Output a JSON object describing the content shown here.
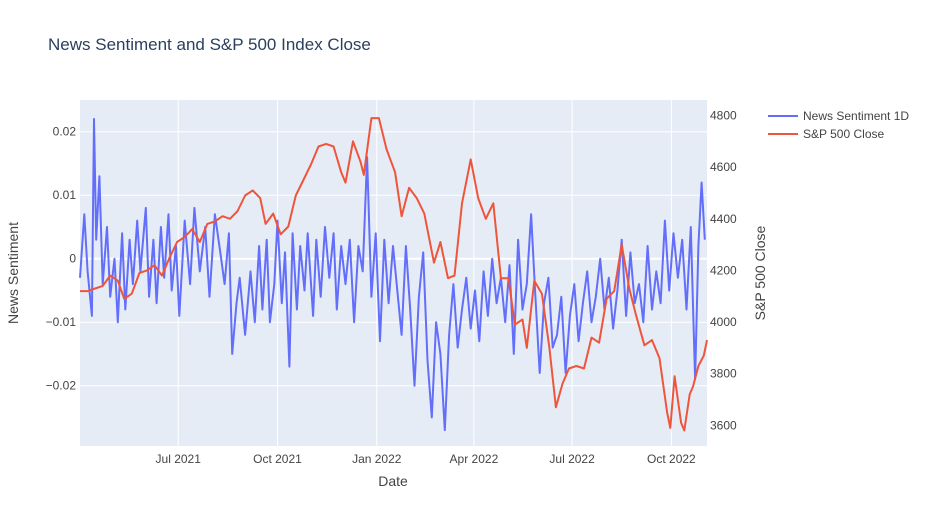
{
  "chart_data": {
    "type": "line",
    "title": "News Sentiment and S&P 500 Index Close",
    "xlabel": "Date",
    "ylabel": "News Sentiment",
    "y2label": "S&P 500 Close",
    "x_range": [
      "2021-04-01",
      "2022-11-03"
    ],
    "ylim": [
      -0.0295,
      0.025
    ],
    "y2lim": [
      3520,
      4860
    ],
    "x_ticks": [
      {
        "date": "2021-07-01",
        "label": "Jul 2021"
      },
      {
        "date": "2021-10-01",
        "label": "Oct 2021"
      },
      {
        "date": "2022-01-01",
        "label": "Jan 2022"
      },
      {
        "date": "2022-04-01",
        "label": "Apr 2022"
      },
      {
        "date": "2022-07-01",
        "label": "Jul 2022"
      },
      {
        "date": "2022-10-01",
        "label": "Oct 2022"
      }
    ],
    "y_ticks": [
      {
        "value": 0.02,
        "label": "0.02"
      },
      {
        "value": 0.01,
        "label": "0.01"
      },
      {
        "value": 0,
        "label": "0"
      },
      {
        "value": -0.01,
        "label": "−0.01"
      },
      {
        "value": -0.02,
        "label": "−0.02"
      }
    ],
    "y2_ticks": [
      {
        "value": 4800,
        "label": "4800"
      },
      {
        "value": 4600,
        "label": "4600"
      },
      {
        "value": 4400,
        "label": "4400"
      },
      {
        "value": 4200,
        "label": "4200"
      },
      {
        "value": 4000,
        "label": "4000"
      },
      {
        "value": 3800,
        "label": "3800"
      },
      {
        "value": 3600,
        "label": "3600"
      }
    ],
    "grid": true,
    "legend_position": "top-right-outside",
    "series": [
      {
        "name": "News Sentiment 1D",
        "axis": "y",
        "color": "#636efa",
        "points": [
          [
            "2021-04-01",
            -0.003
          ],
          [
            "2021-04-05",
            0.007
          ],
          [
            "2021-04-08",
            -0.002
          ],
          [
            "2021-04-12",
            -0.009
          ],
          [
            "2021-04-14",
            0.022
          ],
          [
            "2021-04-16",
            0.003
          ],
          [
            "2021-04-19",
            0.013
          ],
          [
            "2021-04-22",
            -0.004
          ],
          [
            "2021-04-26",
            0.005
          ],
          [
            "2021-04-29",
            -0.006
          ],
          [
            "2021-05-03",
            0.0
          ],
          [
            "2021-05-06",
            -0.01
          ],
          [
            "2021-05-10",
            0.004
          ],
          [
            "2021-05-13",
            -0.008
          ],
          [
            "2021-05-17",
            0.003
          ],
          [
            "2021-05-20",
            -0.004
          ],
          [
            "2021-05-24",
            0.006
          ],
          [
            "2021-05-27",
            -0.002
          ],
          [
            "2021-06-01",
            0.008
          ],
          [
            "2021-06-04",
            -0.006
          ],
          [
            "2021-06-08",
            0.003
          ],
          [
            "2021-06-11",
            -0.007
          ],
          [
            "2021-06-15",
            0.005
          ],
          [
            "2021-06-18",
            -0.003
          ],
          [
            "2021-06-22",
            0.007
          ],
          [
            "2021-06-25",
            -0.005
          ],
          [
            "2021-06-29",
            0.002
          ],
          [
            "2021-07-02",
            -0.009
          ],
          [
            "2021-07-07",
            0.006
          ],
          [
            "2021-07-12",
            -0.004
          ],
          [
            "2021-07-16",
            0.008
          ],
          [
            "2021-07-21",
            -0.002
          ],
          [
            "2021-07-26",
            0.005
          ],
          [
            "2021-07-30",
            -0.006
          ],
          [
            "2021-08-04",
            0.007
          ],
          [
            "2021-08-09",
            0.001
          ],
          [
            "2021-08-13",
            -0.004
          ],
          [
            "2021-08-17",
            0.004
          ],
          [
            "2021-08-20",
            -0.015
          ],
          [
            "2021-08-24",
            -0.007
          ],
          [
            "2021-08-27",
            -0.003
          ],
          [
            "2021-09-01",
            -0.012
          ],
          [
            "2021-09-06",
            -0.002
          ],
          [
            "2021-09-10",
            -0.01
          ],
          [
            "2021-09-14",
            0.002
          ],
          [
            "2021-09-17",
            -0.008
          ],
          [
            "2021-09-21",
            0.003
          ],
          [
            "2021-09-24",
            -0.01
          ],
          [
            "2021-09-28",
            -0.004
          ],
          [
            "2021-10-01",
            0.006
          ],
          [
            "2021-10-05",
            -0.007
          ],
          [
            "2021-10-08",
            0.001
          ],
          [
            "2021-10-12",
            -0.017
          ],
          [
            "2021-10-15",
            0.004
          ],
          [
            "2021-10-19",
            -0.008
          ],
          [
            "2021-10-22",
            0.002
          ],
          [
            "2021-10-26",
            -0.005
          ],
          [
            "2021-10-29",
            0.004
          ],
          [
            "2021-11-03",
            -0.009
          ],
          [
            "2021-11-06",
            0.003
          ],
          [
            "2021-11-10",
            -0.006
          ],
          [
            "2021-11-14",
            0.005
          ],
          [
            "2021-11-18",
            -0.003
          ],
          [
            "2021-11-22",
            0.004
          ],
          [
            "2021-11-25",
            -0.008
          ],
          [
            "2021-11-29",
            0.002
          ],
          [
            "2021-12-03",
            -0.004
          ],
          [
            "2021-12-07",
            0.003
          ],
          [
            "2021-12-11",
            -0.01
          ],
          [
            "2021-12-15",
            0.002
          ],
          [
            "2021-12-19",
            -0.002
          ],
          [
            "2021-12-23",
            0.016
          ],
          [
            "2021-12-27",
            -0.006
          ],
          [
            "2021-12-31",
            0.004
          ],
          [
            "2022-01-04",
            -0.013
          ],
          [
            "2022-01-08",
            0.003
          ],
          [
            "2022-01-12",
            -0.007
          ],
          [
            "2022-01-16",
            0.002
          ],
          [
            "2022-01-20",
            -0.005
          ],
          [
            "2022-01-24",
            -0.012
          ],
          [
            "2022-01-28",
            0.002
          ],
          [
            "2022-02-01",
            -0.008
          ],
          [
            "2022-02-05",
            -0.02
          ],
          [
            "2022-02-09",
            -0.006
          ],
          [
            "2022-02-13",
            0.001
          ],
          [
            "2022-02-17",
            -0.016
          ],
          [
            "2022-02-21",
            -0.025
          ],
          [
            "2022-02-25",
            -0.01
          ],
          [
            "2022-03-01",
            -0.015
          ],
          [
            "2022-03-05",
            -0.027
          ],
          [
            "2022-03-09",
            -0.012
          ],
          [
            "2022-03-13",
            -0.004
          ],
          [
            "2022-03-17",
            -0.014
          ],
          [
            "2022-03-21",
            -0.008
          ],
          [
            "2022-03-25",
            -0.003
          ],
          [
            "2022-03-29",
            -0.011
          ],
          [
            "2022-04-02",
            -0.005
          ],
          [
            "2022-04-06",
            -0.013
          ],
          [
            "2022-04-10",
            -0.002
          ],
          [
            "2022-04-14",
            -0.009
          ],
          [
            "2022-04-18",
            0.0
          ],
          [
            "2022-04-22",
            -0.007
          ],
          [
            "2022-04-26",
            -0.003
          ],
          [
            "2022-04-30",
            -0.01
          ],
          [
            "2022-05-04",
            -0.001
          ],
          [
            "2022-05-08",
            -0.015
          ],
          [
            "2022-05-12",
            0.003
          ],
          [
            "2022-05-16",
            -0.008
          ],
          [
            "2022-05-20",
            -0.004
          ],
          [
            "2022-05-24",
            0.007
          ],
          [
            "2022-05-28",
            -0.006
          ],
          [
            "2022-06-01",
            -0.018
          ],
          [
            "2022-06-05",
            -0.007
          ],
          [
            "2022-06-09",
            -0.003
          ],
          [
            "2022-06-13",
            -0.014
          ],
          [
            "2022-06-17",
            -0.012
          ],
          [
            "2022-06-21",
            -0.006
          ],
          [
            "2022-06-25",
            -0.018
          ],
          [
            "2022-06-29",
            -0.009
          ],
          [
            "2022-07-03",
            -0.004
          ],
          [
            "2022-07-07",
            -0.013
          ],
          [
            "2022-07-11",
            -0.007
          ],
          [
            "2022-07-15",
            -0.002
          ],
          [
            "2022-07-19",
            -0.01
          ],
          [
            "2022-07-23",
            -0.006
          ],
          [
            "2022-07-27",
            0.0
          ],
          [
            "2022-07-31",
            -0.008
          ],
          [
            "2022-08-04",
            -0.003
          ],
          [
            "2022-08-08",
            -0.011
          ],
          [
            "2022-08-12",
            -0.005
          ],
          [
            "2022-08-16",
            0.003
          ],
          [
            "2022-08-20",
            -0.009
          ],
          [
            "2022-08-24",
            0.001
          ],
          [
            "2022-08-28",
            -0.007
          ],
          [
            "2022-09-01",
            -0.004
          ],
          [
            "2022-09-05",
            -0.01
          ],
          [
            "2022-09-09",
            0.002
          ],
          [
            "2022-09-13",
            -0.008
          ],
          [
            "2022-09-17",
            -0.002
          ],
          [
            "2022-09-21",
            -0.007
          ],
          [
            "2022-09-25",
            0.006
          ],
          [
            "2022-09-29",
            -0.005
          ],
          [
            "2022-10-03",
            0.004
          ],
          [
            "2022-10-07",
            -0.003
          ],
          [
            "2022-10-11",
            0.003
          ],
          [
            "2022-10-15",
            -0.008
          ],
          [
            "2022-10-19",
            0.005
          ],
          [
            "2022-10-23",
            -0.019
          ],
          [
            "2022-10-26",
            0.002
          ],
          [
            "2022-10-29",
            0.012
          ],
          [
            "2022-11-01",
            0.003
          ]
        ]
      },
      {
        "name": "S&P 500 Close",
        "axis": "y2",
        "color": "#ef553b",
        "points": [
          [
            "2021-04-01",
            4120
          ],
          [
            "2021-04-08",
            4120
          ],
          [
            "2021-04-15",
            4130
          ],
          [
            "2021-04-22",
            4140
          ],
          [
            "2021-04-29",
            4180
          ],
          [
            "2021-05-06",
            4160
          ],
          [
            "2021-05-12",
            4090
          ],
          [
            "2021-05-19",
            4110
          ],
          [
            "2021-05-26",
            4190
          ],
          [
            "2021-06-02",
            4200
          ],
          [
            "2021-06-09",
            4220
          ],
          [
            "2021-06-16",
            4180
          ],
          [
            "2021-06-23",
            4250
          ],
          [
            "2021-06-30",
            4310
          ],
          [
            "2021-07-07",
            4330
          ],
          [
            "2021-07-14",
            4360
          ],
          [
            "2021-07-21",
            4310
          ],
          [
            "2021-07-28",
            4380
          ],
          [
            "2021-08-04",
            4390
          ],
          [
            "2021-08-11",
            4410
          ],
          [
            "2021-08-18",
            4400
          ],
          [
            "2021-08-25",
            4430
          ],
          [
            "2021-09-01",
            4490
          ],
          [
            "2021-09-08",
            4510
          ],
          [
            "2021-09-15",
            4480
          ],
          [
            "2021-09-20",
            4380
          ],
          [
            "2021-09-27",
            4420
          ],
          [
            "2021-10-04",
            4340
          ],
          [
            "2021-10-11",
            4370
          ],
          [
            "2021-10-18",
            4490
          ],
          [
            "2021-10-25",
            4550
          ],
          [
            "2021-11-01",
            4610
          ],
          [
            "2021-11-08",
            4680
          ],
          [
            "2021-11-15",
            4690
          ],
          [
            "2021-11-22",
            4680
          ],
          [
            "2021-11-29",
            4580
          ],
          [
            "2021-12-03",
            4540
          ],
          [
            "2021-12-10",
            4700
          ],
          [
            "2021-12-17",
            4620
          ],
          [
            "2021-12-20",
            4570
          ],
          [
            "2021-12-27",
            4790
          ],
          [
            "2022-01-03",
            4790
          ],
          [
            "2022-01-10",
            4670
          ],
          [
            "2022-01-18",
            4580
          ],
          [
            "2022-01-24",
            4410
          ],
          [
            "2022-01-31",
            4520
          ],
          [
            "2022-02-07",
            4480
          ],
          [
            "2022-02-14",
            4420
          ],
          [
            "2022-02-23",
            4230
          ],
          [
            "2022-03-01",
            4310
          ],
          [
            "2022-03-08",
            4170
          ],
          [
            "2022-03-14",
            4180
          ],
          [
            "2022-03-21",
            4460
          ],
          [
            "2022-03-29",
            4630
          ],
          [
            "2022-04-05",
            4480
          ],
          [
            "2022-04-12",
            4400
          ],
          [
            "2022-04-19",
            4460
          ],
          [
            "2022-04-26",
            4170
          ],
          [
            "2022-05-03",
            4170
          ],
          [
            "2022-05-09",
            3990
          ],
          [
            "2022-05-16",
            4010
          ],
          [
            "2022-05-20",
            3900
          ],
          [
            "2022-05-27",
            4160
          ],
          [
            "2022-06-03",
            4110
          ],
          [
            "2022-06-10",
            3900
          ],
          [
            "2022-06-16",
            3670
          ],
          [
            "2022-06-22",
            3760
          ],
          [
            "2022-06-28",
            3820
          ],
          [
            "2022-07-05",
            3830
          ],
          [
            "2022-07-12",
            3820
          ],
          [
            "2022-07-19",
            3940
          ],
          [
            "2022-07-26",
            3920
          ],
          [
            "2022-08-02",
            4090
          ],
          [
            "2022-08-09",
            4120
          ],
          [
            "2022-08-16",
            4300
          ],
          [
            "2022-08-23",
            4130
          ],
          [
            "2022-08-29",
            4030
          ],
          [
            "2022-09-06",
            3910
          ],
          [
            "2022-09-13",
            3930
          ],
          [
            "2022-09-20",
            3860
          ],
          [
            "2022-09-27",
            3650
          ],
          [
            "2022-09-30",
            3590
          ],
          [
            "2022-10-04",
            3790
          ],
          [
            "2022-10-10",
            3610
          ],
          [
            "2022-10-13",
            3580
          ],
          [
            "2022-10-18",
            3720
          ],
          [
            "2022-10-21",
            3750
          ],
          [
            "2022-10-26",
            3830
          ],
          [
            "2022-10-31",
            3870
          ],
          [
            "2022-11-03",
            3930
          ]
        ]
      }
    ]
  }
}
